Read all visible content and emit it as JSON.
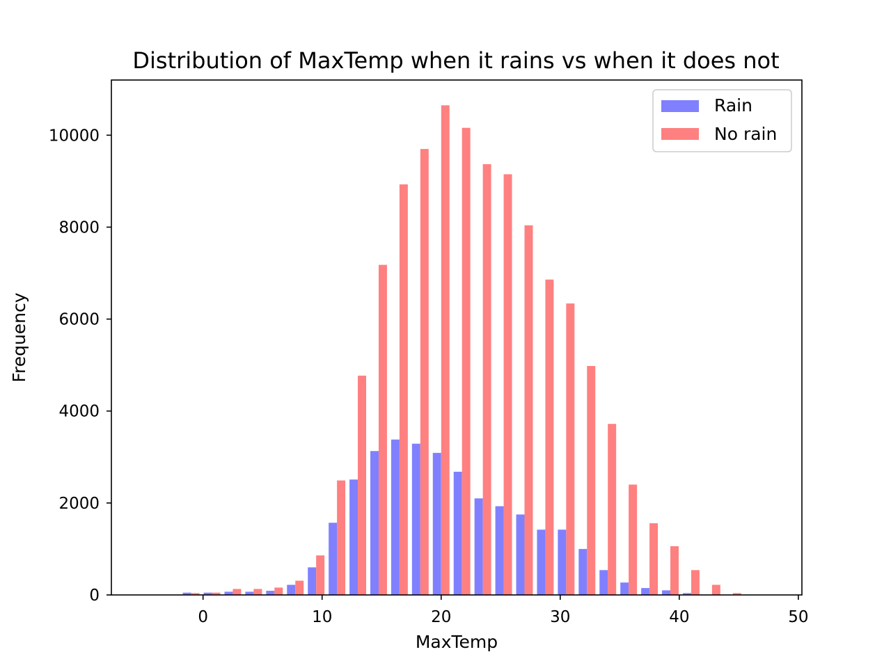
{
  "chart_data": {
    "type": "bar",
    "title": "Distribution of MaxTemp when it rains vs when it does not",
    "xlabel": "MaxTemp",
    "ylabel": "Frequency",
    "xlim": [
      -7.7,
      50.3
    ],
    "ylim": [
      0,
      11200
    ],
    "xticks": [
      0,
      10,
      20,
      30,
      40,
      50
    ],
    "yticks": [
      0,
      2000,
      4000,
      6000,
      8000,
      10000
    ],
    "grid": false,
    "legend_position": "top-right",
    "bin_width": 3.5,
    "categories": [
      -1.0,
      0.75,
      2.5,
      4.25,
      6.0,
      7.75,
      9.5,
      11.25,
      13.0,
      14.75,
      16.5,
      18.25,
      20.0,
      21.75,
      23.5,
      25.25,
      27.0,
      28.75,
      30.5,
      32.25,
      34.0,
      35.75,
      37.5,
      39.25,
      41.0,
      42.75,
      44.5,
      46.25
    ],
    "series": [
      {
        "name": "Rain",
        "color": "#8080ff",
        "values": [
          50,
          50,
          70,
          70,
          90,
          220,
          600,
          1570,
          2510,
          3130,
          3380,
          3290,
          3090,
          2680,
          2100,
          1930,
          1750,
          1420,
          1420,
          1000,
          540,
          270,
          150,
          100,
          40,
          0,
          0,
          0
        ]
      },
      {
        "name": "No rain",
        "color": "#ff8080",
        "values": [
          40,
          50,
          130,
          130,
          160,
          310,
          860,
          2490,
          4770,
          7180,
          8930,
          9700,
          10650,
          10160,
          9370,
          9150,
          8040,
          6860,
          6340,
          4980,
          3720,
          2400,
          1560,
          1060,
          540,
          220,
          40,
          0
        ]
      }
    ]
  }
}
